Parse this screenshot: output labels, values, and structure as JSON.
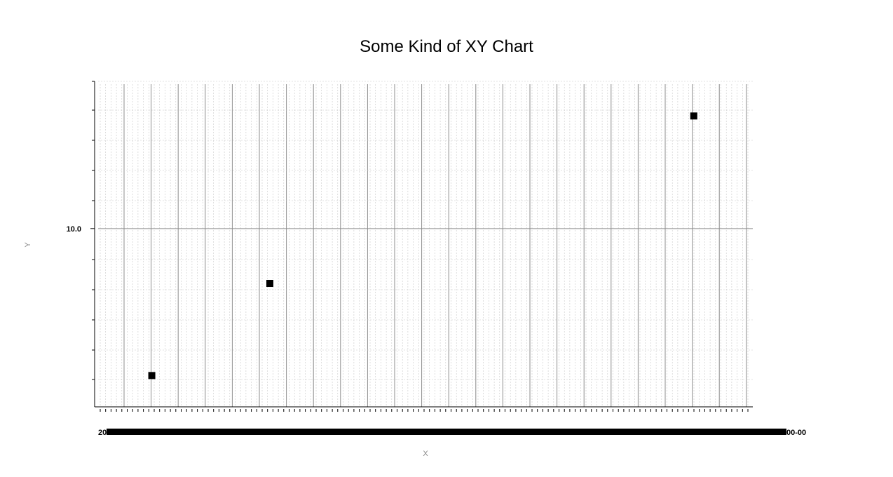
{
  "chart_data": {
    "type": "scatter",
    "title": "Some Kind of XY Chart",
    "xlabel": "X",
    "ylabel": "Y",
    "y_scale": "log",
    "ylim": [
      6.6,
      14.0
    ],
    "y_tick_labels": [
      {
        "value": 10.0,
        "label": "10.0"
      }
    ],
    "x_tick_labels_visible": [
      "20",
      "00-00"
    ],
    "grid": true,
    "series": [
      {
        "points": [
          {
            "x": 1.0,
            "y": 7.1
          },
          {
            "x": 3.2,
            "y": 8.8
          },
          {
            "x": 11.1,
            "y": 13.0
          }
        ]
      }
    ],
    "xlim": [
      0.0,
      12.2
    ],
    "marker_color": "#000000"
  }
}
